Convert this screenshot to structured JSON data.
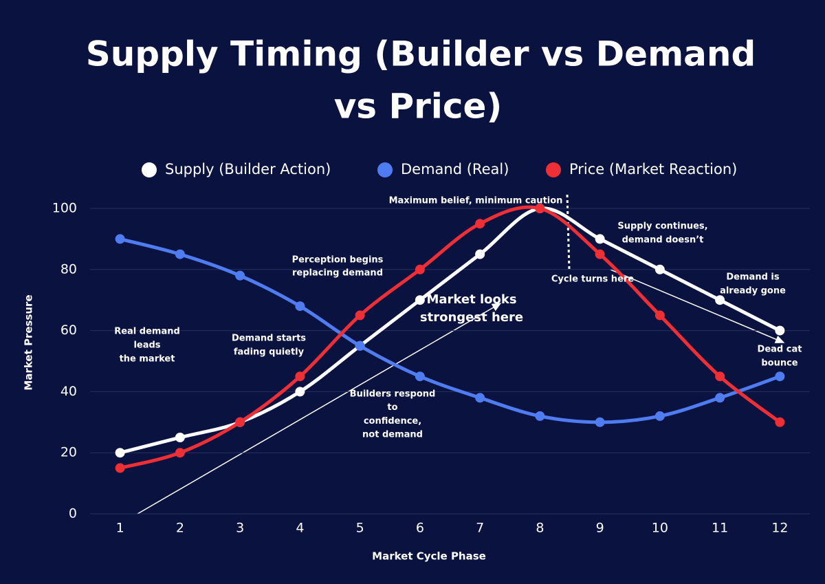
{
  "chart_data": {
    "type": "line",
    "title": [
      "Supply Timing (Builder vs Demand",
      "vs Price)"
    ],
    "x_label": "Market Cycle Phase",
    "y_label": "Market Pressure",
    "x": [
      1,
      2,
      3,
      4,
      5,
      6,
      7,
      8,
      9,
      10,
      11,
      12
    ],
    "xlim": [
      0.5,
      12.5
    ],
    "xticks": [
      1,
      2,
      3,
      4,
      5,
      6,
      7,
      8,
      9,
      10,
      11,
      12
    ],
    "ylim": [
      0,
      100
    ],
    "yticks": [
      0,
      20,
      40,
      60,
      80,
      100
    ],
    "grid": true,
    "series": [
      {
        "name": "Supply (Builder Action)",
        "color": "#ffffff",
        "values": [
          20,
          25,
          30,
          40,
          55,
          70,
          85,
          100,
          90,
          80,
          70,
          60
        ]
      },
      {
        "name": "Demand (Real)",
        "color": "#4f7cf0",
        "values": [
          90,
          85,
          78,
          68,
          55,
          45,
          38,
          32,
          30,
          32,
          38,
          45
        ]
      },
      {
        "name": "Price (Market Reaction)",
        "color": "#ee2f36",
        "values": [
          15,
          20,
          30,
          45,
          65,
          80,
          95,
          100,
          85,
          65,
          45,
          30
        ]
      }
    ],
    "annotations": [
      [
        "Maximum belief, minimum caution"
      ],
      [
        "Supply continues,",
        "demand doesn’t"
      ],
      [
        "Perception begins",
        "replacing demand"
      ],
      [
        "Cycle turns here"
      ],
      [
        "Demand is",
        "already gone"
      ],
      [
        "Market looks",
        "strongest here"
      ],
      [
        "Real demand",
        "leads",
        "the market"
      ],
      [
        "Demand starts",
        "fading quietly"
      ],
      [
        "Dead cat",
        "bounce"
      ],
      [
        "Builders respond",
        "to",
        "confidence,",
        "not demand"
      ]
    ]
  }
}
